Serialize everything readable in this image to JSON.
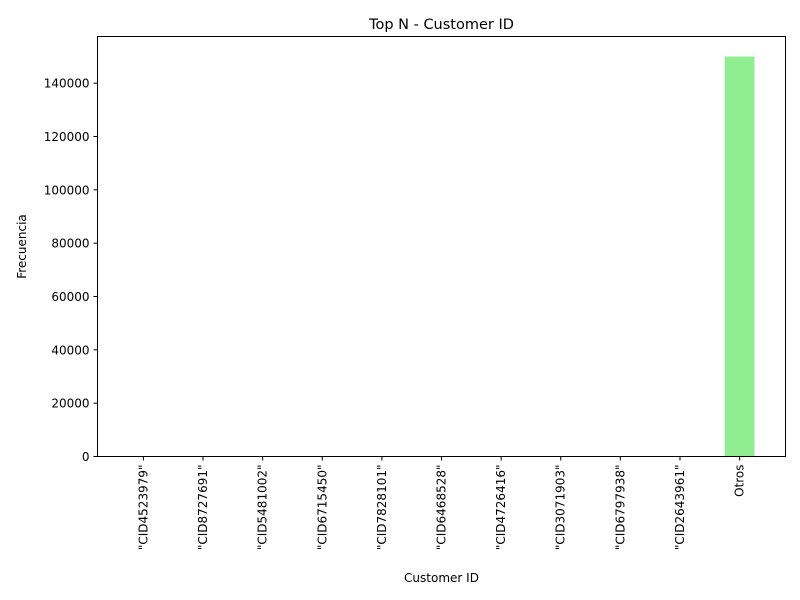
{
  "chart_data": {
    "type": "bar",
    "title": "Top N - Customer ID",
    "xlabel": "Customer ID",
    "ylabel": "Frecuencia",
    "categories": [
      "\"CID4523979\"",
      "\"CID8727691\"",
      "\"CID5481002\"",
      "\"CID6715450\"",
      "\"CID7828101\"",
      "\"CID6468528\"",
      "\"CID4726416\"",
      "\"CID3071903\"",
      "\"CID6797938\"",
      "\"CID2643961\"",
      "Otros"
    ],
    "values": [
      1,
      1,
      1,
      1,
      1,
      1,
      1,
      1,
      1,
      1,
      149990
    ],
    "ylim": [
      0,
      157500
    ],
    "yticks": [
      0,
      20000,
      40000,
      60000,
      80000,
      100000,
      120000,
      140000
    ],
    "colors": {
      "bar": "#90ee90",
      "axis": "#000000"
    },
    "grid": false,
    "legend": "none"
  }
}
